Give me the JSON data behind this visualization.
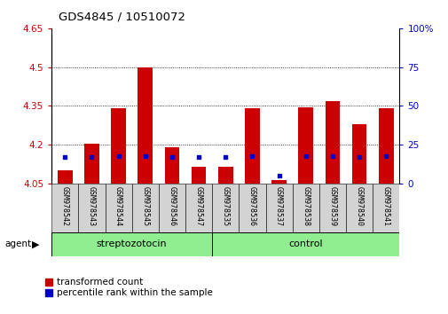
{
  "title": "GDS4845 / 10510072",
  "samples": [
    "GSM978542",
    "GSM978543",
    "GSM978544",
    "GSM978545",
    "GSM978546",
    "GSM978547",
    "GSM978535",
    "GSM978536",
    "GSM978537",
    "GSM978538",
    "GSM978539",
    "GSM978540",
    "GSM978541"
  ],
  "red_values": [
    4.1,
    4.205,
    4.34,
    4.5,
    4.19,
    4.115,
    4.115,
    4.34,
    4.065,
    4.345,
    4.37,
    4.28,
    4.34
  ],
  "blue_percentile": [
    17,
    17,
    18,
    18,
    17,
    17,
    17,
    18,
    5,
    18,
    18,
    17,
    18
  ],
  "ymin": 4.05,
  "ymax": 4.65,
  "y2min": 0,
  "y2max": 100,
  "yticks": [
    4.05,
    4.2,
    4.35,
    4.5,
    4.65
  ],
  "ytick_labels": [
    "4.05",
    "4.2",
    "4.35",
    "4.5",
    "4.65"
  ],
  "y2ticks": [
    0,
    25,
    50,
    75,
    100
  ],
  "y2tick_labels": [
    "0",
    "25",
    "50",
    "75",
    "100%"
  ],
  "gridlines": [
    4.2,
    4.35,
    4.5
  ],
  "red_color": "#cc0000",
  "blue_color": "#0000cc",
  "bar_width": 0.55,
  "group_bg": "#90ee90",
  "sample_bg": "#d3d3d3",
  "left_axis_color": "#cc0000",
  "right_axis_color": "#0000cc",
  "base_value": 4.05,
  "strep_count": 6,
  "ctrl_count": 7
}
